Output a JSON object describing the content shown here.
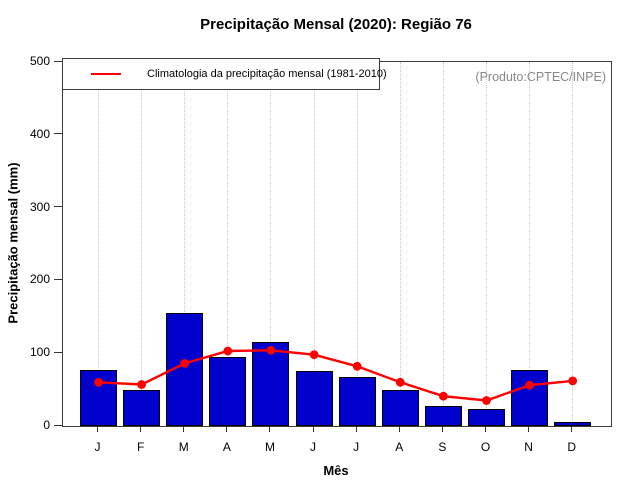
{
  "watermark": "(Produto:CPTEC/INPE)",
  "chart_data": {
    "type": "bar",
    "title": "Precipitação Mensal (2020): Região 76",
    "xlabel": "Mês",
    "ylabel": "Precipitação mensal (mm)",
    "categories": [
      "J",
      "F",
      "M",
      "A",
      "M",
      "J",
      "J",
      "A",
      "S",
      "O",
      "N",
      "D"
    ],
    "series": [
      {
        "name": "Precipitação mensal 2020",
        "type": "bar",
        "color": "#0101cd",
        "border_color": "#000000",
        "values": [
          77,
          49,
          155,
          95,
          115,
          76,
          67,
          50,
          27,
          24,
          77,
          5
        ]
      },
      {
        "name": "Climatologia da precipitação mensal (1981-2010)",
        "type": "line",
        "color": "#ff0000",
        "marker": "filled-circle",
        "values": [
          60,
          57,
          86,
          103,
          104,
          98,
          82,
          60,
          41,
          35,
          56,
          62
        ]
      }
    ],
    "legend": "Climatologia da precipitação mensal (1981-2010)",
    "legend_position": "top-left",
    "ylim": [
      0,
      500
    ],
    "yticks": [
      0,
      100,
      200,
      300,
      400,
      500
    ],
    "grid": "vertical-dotted"
  }
}
